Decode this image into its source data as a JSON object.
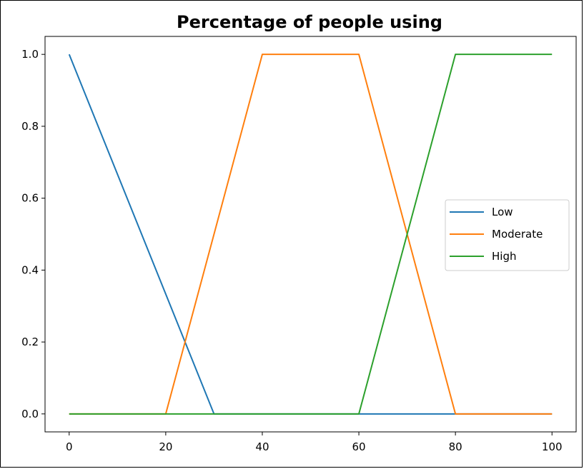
{
  "chart_data": {
    "type": "line",
    "title": "Percentage of people using",
    "xlabel": "",
    "ylabel": "",
    "xlim": [
      -5,
      105
    ],
    "ylim": [
      -0.05,
      1.05
    ],
    "xticks": [
      0,
      20,
      40,
      60,
      80,
      100
    ],
    "yticks": [
      0.0,
      0.2,
      0.4,
      0.6,
      0.8,
      1.0
    ],
    "xtick_labels": [
      "0",
      "20",
      "40",
      "60",
      "80",
      "100"
    ],
    "ytick_labels": [
      "0.0",
      "0.2",
      "0.4",
      "0.6",
      "0.8",
      "1.0"
    ],
    "grid": false,
    "legend_position": "center-right",
    "series": [
      {
        "name": "Low",
        "color": "#1f77b4",
        "x": [
          0,
          30,
          100
        ],
        "y": [
          1.0,
          0.0,
          0.0
        ]
      },
      {
        "name": "Moderate",
        "color": "#ff7f0e",
        "x": [
          0,
          20,
          40,
          60,
          80,
          100
        ],
        "y": [
          0.0,
          0.0,
          1.0,
          1.0,
          0.0,
          0.0
        ]
      },
      {
        "name": "High",
        "color": "#2ca02c",
        "x": [
          0,
          60,
          80,
          100
        ],
        "y": [
          0.0,
          0.0,
          1.0,
          1.0
        ]
      }
    ]
  }
}
